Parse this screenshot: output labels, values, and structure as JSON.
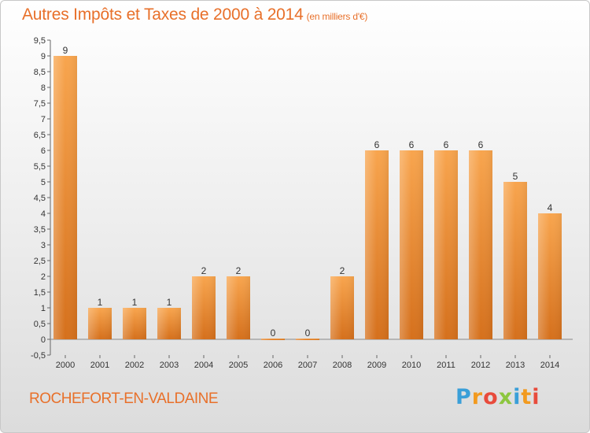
{
  "header": {
    "title": "Autres Impôts et Taxes de 2000 à 2014",
    "unit": "(en milliers d'€)"
  },
  "footer": {
    "commune": "ROCHEFORT-EN-VALDAINE"
  },
  "brand": {
    "letters": [
      {
        "ch": "P",
        "color": "#3a9fd8"
      },
      {
        "ch": "r",
        "color": "#f29a1f"
      },
      {
        "ch": "o",
        "color": "#e84b3c"
      },
      {
        "ch": "x",
        "color": "#8cc63f"
      },
      {
        "ch": "i",
        "color": "#3a9fd8"
      },
      {
        "ch": "t",
        "color": "#f29a1f"
      },
      {
        "ch": "i",
        "color": "#e84b3c"
      }
    ]
  },
  "chart_data": {
    "type": "bar",
    "title": "Autres Impôts et Taxes de 2000 à 2014",
    "subtitle": "(en milliers d'€)",
    "categories": [
      "2000",
      "2001",
      "2002",
      "2003",
      "2004",
      "2005",
      "2006",
      "2007",
      "2008",
      "2009",
      "2010",
      "2011",
      "2012",
      "2013",
      "2014"
    ],
    "values": [
      9,
      1,
      1,
      1,
      2,
      2,
      0,
      0,
      2,
      6,
      6,
      6,
      6,
      5,
      4
    ],
    "data_labels": [
      "9",
      "1",
      "1",
      "1",
      "2",
      "2",
      "0",
      "0",
      "2",
      "6",
      "6",
      "6",
      "6",
      "5",
      "4"
    ],
    "y_ticks": [
      "-0,5",
      "0",
      "0,5",
      "1",
      "1,5",
      "2",
      "2,5",
      "3",
      "3,5",
      "4",
      "4,5",
      "5",
      "5,5",
      "6",
      "6,5",
      "7",
      "7,5",
      "8",
      "8,5",
      "9",
      "9,5"
    ],
    "ylim": [
      -0.5,
      9.5
    ],
    "grid": false,
    "bar_color": "#f0923a"
  }
}
